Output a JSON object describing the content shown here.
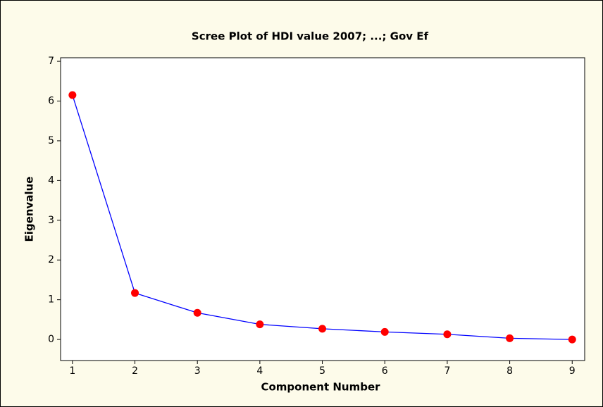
{
  "chart_data": {
    "type": "line",
    "title": "Scree Plot of HDI value 2007; ...; Gov Ef",
    "x_label": "Component Number",
    "y_label": "Eigenvalue",
    "x": [
      1,
      2,
      3,
      4,
      5,
      6,
      7,
      8,
      9
    ],
    "series": [
      {
        "name": "Eigenvalue",
        "color": "#0000ff",
        "marker_color": "#ff0000",
        "values": [
          6.15,
          1.17,
          0.67,
          0.38,
          0.27,
          0.19,
          0.13,
          0.03,
          0.0
        ]
      }
    ],
    "xlim": [
      0.81,
      9.2
    ],
    "xticks": [
      1,
      2,
      3,
      4,
      5,
      6,
      7,
      8,
      9
    ],
    "ylim": [
      -0.53,
      7.09
    ],
    "yticks": [
      0,
      1,
      2,
      3,
      4,
      5,
      6,
      7
    ],
    "grid": false
  }
}
